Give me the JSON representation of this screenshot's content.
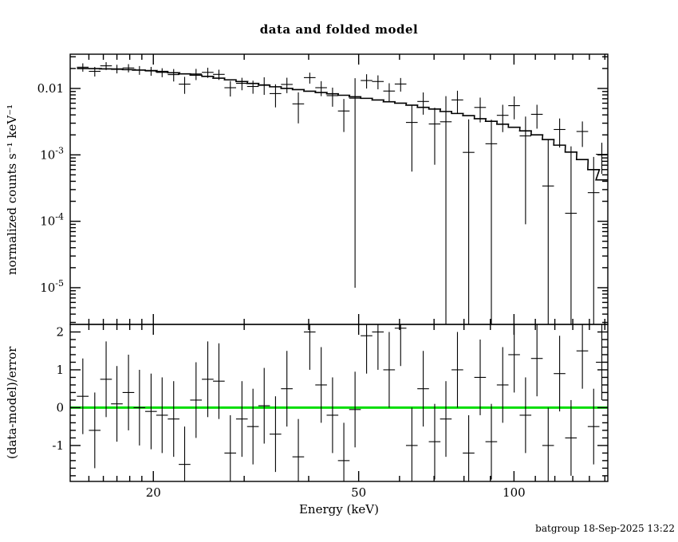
{
  "colors": {
    "background": "#ffffff",
    "frame": "#000000",
    "data": "#000000",
    "model": "#000000",
    "zero_line": "#00dd00"
  },
  "chart_data": {
    "type": "scatter",
    "title": "data and folded model",
    "xlabel": "Energy (keV)",
    "ylabel_top": "normalized counts s⁻¹ keV⁻¹",
    "ylabel_bottom": "(data-model)/error",
    "footer": "batgroup 18-Sep-2025 13:22",
    "x_axis": {
      "scale": "log",
      "min": 13.8,
      "max": 152,
      "major_ticks": [
        20,
        50,
        100
      ],
      "major_labels": [
        "20",
        "50",
        "100"
      ],
      "minor_ticks": [
        15,
        16,
        17,
        18,
        19,
        30,
        40,
        60,
        70,
        80,
        90,
        110,
        120,
        130,
        140,
        150
      ]
    },
    "top_panel": {
      "scale": "log",
      "min": 2.8e-06,
      "max": 0.0328,
      "major_ticks": [
        0.01,
        0.001,
        0.0001,
        1e-05
      ],
      "major_labels": [
        "0.01",
        "10^-3",
        "10^-4",
        "10^-5"
      ]
    },
    "bottom_panel": {
      "scale": "linear",
      "min": -1.95,
      "max": 2.2,
      "major_ticks": [
        -1,
        0,
        1,
        2
      ],
      "major_labels": [
        "-1",
        "0",
        "1",
        "2"
      ],
      "minor_step": 0.2,
      "zero_line": 0
    },
    "series": {
      "energy_kev": [
        14.6,
        15.4,
        16.2,
        17.0,
        17.9,
        18.8,
        19.8,
        20.8,
        21.9,
        23.0,
        24.2,
        25.5,
        26.8,
        28.2,
        29.7,
        31.2,
        32.8,
        34.5,
        36.3,
        38.2,
        40.2,
        42.3,
        44.5,
        46.8,
        49.2,
        51.8,
        54.5,
        57.3,
        60.3,
        63.4,
        66.7,
        70.2,
        73.8,
        77.7,
        81.7,
        86.0,
        90.4,
        95.1,
        100.1,
        105.3,
        110.8,
        116.5,
        122.6,
        129.0,
        135.7,
        142.7,
        148.0
      ],
      "xerr_frac": 0.026,
      "rate": [
        0.0209,
        0.01811,
        0.02192,
        0.01979,
        0.02035,
        0.0189,
        0.01832,
        0.01746,
        0.01617,
        0.01162,
        0.01654,
        0.01748,
        0.0163,
        0.01026,
        0.01194,
        0.01071,
        0.01137,
        0.00837,
        0.0115,
        0.00586,
        0.01456,
        0.01027,
        0.0078,
        0.00458,
        0.00714,
        0.01317,
        0.01273,
        0.00914,
        0.01167,
        0.00308,
        0.00637,
        0.00292,
        0.00315,
        0.00672,
        0.00109,
        0.00518,
        0.00147,
        0.00394,
        0.00551,
        0.00193,
        0.00408,
        0.00034,
        0.00241,
        0.000132,
        0.00225,
        0.00027,
        0.00102
      ],
      "rate_err": [
        0.003,
        0.00299,
        0.00296,
        0.00293,
        0.00288,
        0.00284,
        0.00279,
        0.0027,
        0.00344,
        0.00332,
        0.00318,
        0.00304,
        0.00286,
        0.0027,
        0.00254,
        0.00238,
        0.00336,
        0.00318,
        0.003,
        0.00288,
        0.00273,
        0.00261,
        0.00249,
        0.00237,
        0.00713,
        0.0032,
        0.00302,
        0.00284,
        0.0027,
        0.00252,
        0.00234,
        0.00221,
        0.0045,
        0.00252,
        0.00234,
        0.0021,
        0.00192,
        0.00174,
        0.00208,
        0.00184,
        0.0016,
        0.00136,
        0.00112,
        0.00121,
        0.000935,
        0.00066,
        0.000504
      ],
      "model": [
        0.02,
        0.0199,
        0.0197,
        0.0195,
        0.0192,
        0.0189,
        0.0186,
        0.018,
        0.0172,
        0.0166,
        0.0159,
        0.0152,
        0.0143,
        0.0135,
        0.0127,
        0.0119,
        0.0112,
        0.0106,
        0.01,
        0.0096,
        0.0091,
        0.0087,
        0.0083,
        0.0079,
        0.0075,
        0.0071,
        0.0067,
        0.0063,
        0.006,
        0.0056,
        0.0052,
        0.0049,
        0.0045,
        0.0042,
        0.0039,
        0.0035,
        0.0032,
        0.0029,
        0.0026,
        0.0023,
        0.002,
        0.0017,
        0.0014,
        0.0011,
        0.00085,
        0.0006,
        0.00042
      ],
      "residual_sigma": [
        0.3,
        -0.6,
        0.75,
        0.1,
        0.4,
        0.0,
        -0.1,
        -0.2,
        -0.3,
        -1.5,
        0.2,
        0.75,
        0.7,
        -1.2,
        -0.3,
        -0.5,
        0.05,
        -0.7,
        0.5,
        -1.3,
        2.0,
        0.6,
        -0.2,
        -1.4,
        -0.05,
        1.9,
        2.0,
        1.0,
        2.1,
        -1.0,
        0.5,
        -0.9,
        -0.3,
        1.0,
        -1.2,
        0.8,
        -0.9,
        0.6,
        1.4,
        -0.2,
        1.3,
        -1.0,
        0.9,
        -0.8,
        1.5,
        -0.5,
        1.2
      ],
      "residual_err": 1.0
    }
  }
}
